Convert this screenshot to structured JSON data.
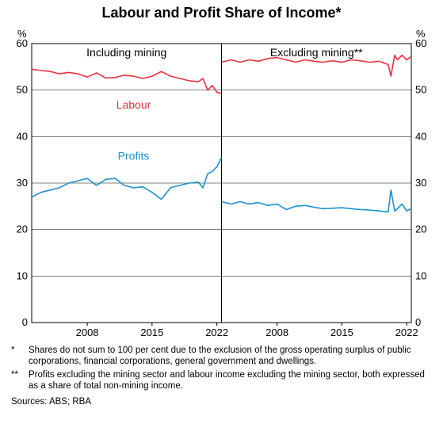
{
  "title": "Labour and Profit Share of Income*",
  "title_fontsize": 18,
  "panels": [
    {
      "heading": "Including mining"
    },
    {
      "heading": "Excluding mining**"
    }
  ],
  "axis": {
    "unit_label": "%",
    "ymin": 0,
    "ymax": 60,
    "ytick_step": 10,
    "yticks": [
      0,
      10,
      20,
      30,
      40,
      50,
      60
    ],
    "xticks_left": [
      2008,
      2015,
      2022
    ],
    "xticks_right": [
      2008,
      2015,
      2022
    ],
    "xmin_left": 2002,
    "xmax_left": 2022.5,
    "xmin_right": 2002,
    "xmax_right": 2022.5,
    "label_fontsize": 13
  },
  "series_labels": {
    "labour": "Labour",
    "profits": "Profits"
  },
  "colors": {
    "labour": "#e7343f",
    "profits": "#1e90d2",
    "axis": "#000000",
    "grid": "#000000",
    "background": "#ffffff",
    "text": "#000000"
  },
  "line_width": 1.6,
  "left": {
    "labour": [
      [
        2002,
        54.5
      ],
      [
        2003,
        54.2
      ],
      [
        2004,
        54.0
      ],
      [
        2005,
        53.5
      ],
      [
        2006,
        53.8
      ],
      [
        2007,
        53.5
      ],
      [
        2008,
        52.8
      ],
      [
        2009,
        53.7
      ],
      [
        2010,
        52.6
      ],
      [
        2011,
        52.7
      ],
      [
        2012,
        53.2
      ],
      [
        2013,
        53.0
      ],
      [
        2014,
        52.5
      ],
      [
        2015,
        53.0
      ],
      [
        2016,
        54.0
      ],
      [
        2017,
        53.0
      ],
      [
        2018,
        52.5
      ],
      [
        2019,
        52.0
      ],
      [
        2020,
        51.8
      ],
      [
        2020.5,
        52.5
      ],
      [
        2021,
        50.0
      ],
      [
        2021.5,
        51.0
      ],
      [
        2022,
        49.5
      ],
      [
        2022.5,
        49.3
      ]
    ],
    "profits": [
      [
        2002,
        27.0
      ],
      [
        2003,
        28.0
      ],
      [
        2004,
        28.5
      ],
      [
        2005,
        29.0
      ],
      [
        2006,
        30.0
      ],
      [
        2007,
        30.5
      ],
      [
        2008,
        31.0
      ],
      [
        2009,
        29.5
      ],
      [
        2010,
        30.8
      ],
      [
        2011,
        31.0
      ],
      [
        2012,
        29.5
      ],
      [
        2013,
        29.0
      ],
      [
        2014,
        29.2
      ],
      [
        2015,
        28.0
      ],
      [
        2016,
        26.5
      ],
      [
        2017,
        29.0
      ],
      [
        2018,
        29.5
      ],
      [
        2019,
        30.0
      ],
      [
        2020,
        30.2
      ],
      [
        2020.5,
        29.0
      ],
      [
        2021,
        32.0
      ],
      [
        2021.5,
        32.5
      ],
      [
        2022,
        33.5
      ],
      [
        2022.5,
        35.5
      ]
    ]
  },
  "right": {
    "labour": [
      [
        2002,
        56.0
      ],
      [
        2003,
        56.5
      ],
      [
        2004,
        56.0
      ],
      [
        2005,
        56.5
      ],
      [
        2006,
        56.2
      ],
      [
        2007,
        56.8
      ],
      [
        2008,
        57.0
      ],
      [
        2009,
        56.5
      ],
      [
        2010,
        56.0
      ],
      [
        2011,
        56.5
      ],
      [
        2012,
        56.2
      ],
      [
        2013,
        56.0
      ],
      [
        2014,
        56.3
      ],
      [
        2015,
        56.0
      ],
      [
        2016,
        56.5
      ],
      [
        2017,
        56.3
      ],
      [
        2018,
        56.0
      ],
      [
        2019,
        56.2
      ],
      [
        2020,
        55.5
      ],
      [
        2020.3,
        53.0
      ],
      [
        2020.7,
        57.5
      ],
      [
        2021,
        56.5
      ],
      [
        2021.5,
        57.5
      ],
      [
        2022,
        56.5
      ],
      [
        2022.5,
        57.2
      ]
    ],
    "profits": [
      [
        2002,
        26.0
      ],
      [
        2003,
        25.5
      ],
      [
        2004,
        26.0
      ],
      [
        2005,
        25.5
      ],
      [
        2006,
        25.8
      ],
      [
        2007,
        25.2
      ],
      [
        2008,
        25.5
      ],
      [
        2009,
        24.3
      ],
      [
        2010,
        25.0
      ],
      [
        2011,
        25.2
      ],
      [
        2012,
        24.8
      ],
      [
        2013,
        24.5
      ],
      [
        2014,
        24.6
      ],
      [
        2015,
        24.7
      ],
      [
        2016,
        24.5
      ],
      [
        2017,
        24.3
      ],
      [
        2018,
        24.2
      ],
      [
        2019,
        24.0
      ],
      [
        2020,
        23.8
      ],
      [
        2020.3,
        28.5
      ],
      [
        2020.7,
        24.0
      ],
      [
        2021,
        24.5
      ],
      [
        2021.5,
        25.5
      ],
      [
        2022,
        24.0
      ],
      [
        2022.5,
        24.5
      ]
    ]
  },
  "series_label_positions": {
    "labour_left": {
      "x": 2013,
      "y": 46
    },
    "profits_left": {
      "x": 2013,
      "y": 35
    }
  },
  "footnotes": [
    {
      "symbol": "*",
      "text": "Shares do not sum to 100 per cent due to the exclusion of the gross operating surplus of public corporations, financial corporations, general government and dwellings."
    },
    {
      "symbol": "**",
      "text": "Profits excluding the mining sector and labour income excluding the mining sector, both expressed as a share of total non-mining income."
    }
  ],
  "sources": "Sources: ABS; RBA"
}
